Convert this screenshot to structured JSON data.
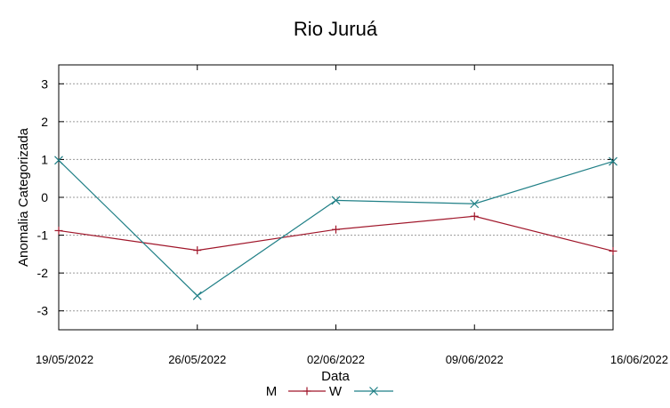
{
  "chart_data": {
    "type": "line",
    "title": "Rio Juruá",
    "xlabel": "Data",
    "ylabel": "Anomalia Categorizada",
    "ylim": [
      -3.5,
      3.5
    ],
    "yticks": [
      3,
      2,
      1,
      0,
      -1,
      -2,
      -3
    ],
    "ytick_labels": [
      "3",
      "2",
      "1",
      "0",
      "-1",
      "-2",
      "-3"
    ],
    "categories": [
      "19/05/2022",
      "26/05/2022",
      "02/06/2022",
      "09/06/2022",
      "16/06/2022"
    ],
    "grid": true,
    "legend_position": "bottom",
    "series": [
      {
        "name": "M",
        "color": "#a0162a",
        "marker": "plus",
        "values": [
          -0.88,
          -1.4,
          -0.85,
          -0.5,
          -1.42
        ]
      },
      {
        "name": "W",
        "color": "#1f7f86",
        "marker": "cross",
        "values": [
          0.98,
          -2.6,
          -0.08,
          -0.17,
          0.95
        ]
      }
    ]
  }
}
